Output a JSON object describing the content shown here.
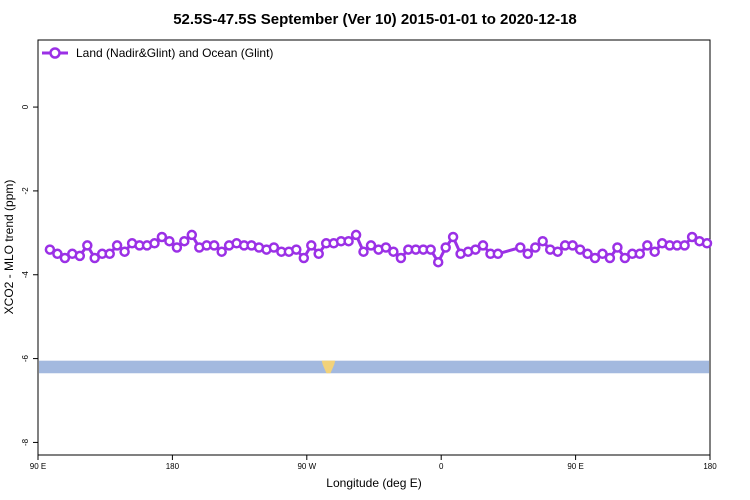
{
  "chart_data": {
    "type": "line",
    "title": "52.5S-47.5S September (Ver 10)   2015-01-01 to 2020-12-18",
    "xlabel": "Longitude (deg E)",
    "ylabel": "XCO2 - MLO trend (ppm)",
    "x_ticks": [
      {
        "value": 90,
        "label": "90 E"
      },
      {
        "value": 180,
        "label": "180"
      },
      {
        "value": 270,
        "label": "90 W"
      },
      {
        "value": 360,
        "label": "0"
      },
      {
        "value": 450,
        "label": "90 E"
      },
      {
        "value": 540,
        "label": "180"
      }
    ],
    "y_ticks": [
      0,
      -2,
      -4,
      -6,
      -8
    ],
    "xlim": [
      90,
      540
    ],
    "ylim": [
      -8.3,
      1.6
    ],
    "legend": {
      "position": "top-left"
    },
    "colors": {
      "series": "#9b30e6",
      "ocean_band": "#a3b9df",
      "land": "#f2d27a"
    },
    "series": [
      {
        "name": "Land (Nadir&Glint) and Ocean (Glint)",
        "x": [
          98,
          103,
          108,
          113,
          118,
          123,
          128,
          133,
          138,
          143,
          148,
          153,
          158,
          163,
          168,
          173,
          178,
          183,
          188,
          193,
          198,
          203,
          208,
          213,
          218,
          223,
          228,
          233,
          238,
          243,
          248,
          253,
          258,
          263,
          268,
          273,
          278,
          283,
          288,
          293,
          298,
          303,
          308,
          313,
          318,
          323,
          328,
          333,
          338,
          343,
          348,
          353,
          358,
          363,
          368,
          373,
          378,
          383,
          388,
          393,
          398,
          413,
          418,
          423,
          428,
          433,
          438,
          443,
          448,
          453,
          458,
          463,
          468,
          473,
          478,
          483,
          488,
          493,
          498,
          503,
          508,
          513,
          518,
          523,
          528,
          533,
          538
        ],
        "y": [
          -3.4,
          -3.5,
          -3.6,
          -3.5,
          -3.55,
          -3.3,
          -3.6,
          -3.5,
          -3.5,
          -3.3,
          -3.45,
          -3.25,
          -3.3,
          -3.3,
          -3.25,
          -3.1,
          -3.2,
          -3.35,
          -3.2,
          -3.05,
          -3.35,
          -3.3,
          -3.3,
          -3.45,
          -3.3,
          -3.25,
          -3.3,
          -3.3,
          -3.35,
          -3.4,
          -3.35,
          -3.45,
          -3.45,
          -3.4,
          -3.6,
          -3.3,
          -3.5,
          -3.25,
          -3.25,
          -3.2,
          -3.2,
          -3.05,
          -3.45,
          -3.3,
          -3.4,
          -3.35,
          -3.45,
          -3.6,
          -3.4,
          -3.4,
          -3.4,
          -3.4,
          -3.7,
          -3.35,
          -3.1,
          -3.5,
          -3.45,
          -3.4,
          -3.3,
          -3.5,
          -3.5,
          -3.35,
          -3.5,
          -3.35,
          -3.2,
          -3.4,
          -3.45,
          -3.3,
          -3.3,
          -3.4,
          -3.5,
          -3.6,
          -3.5,
          -3.6,
          -3.35,
          -3.6,
          -3.5,
          -3.5,
          -3.3,
          -3.45,
          -3.25,
          -3.3,
          -3.3,
          -3.3,
          -3.1,
          -3.2,
          -3.25
        ]
      }
    ],
    "ocean_band_y": [
      -6.35,
      -6.05
    ],
    "land_patches": [
      {
        "x": [
          280,
          289
        ],
        "label": ""
      }
    ]
  }
}
